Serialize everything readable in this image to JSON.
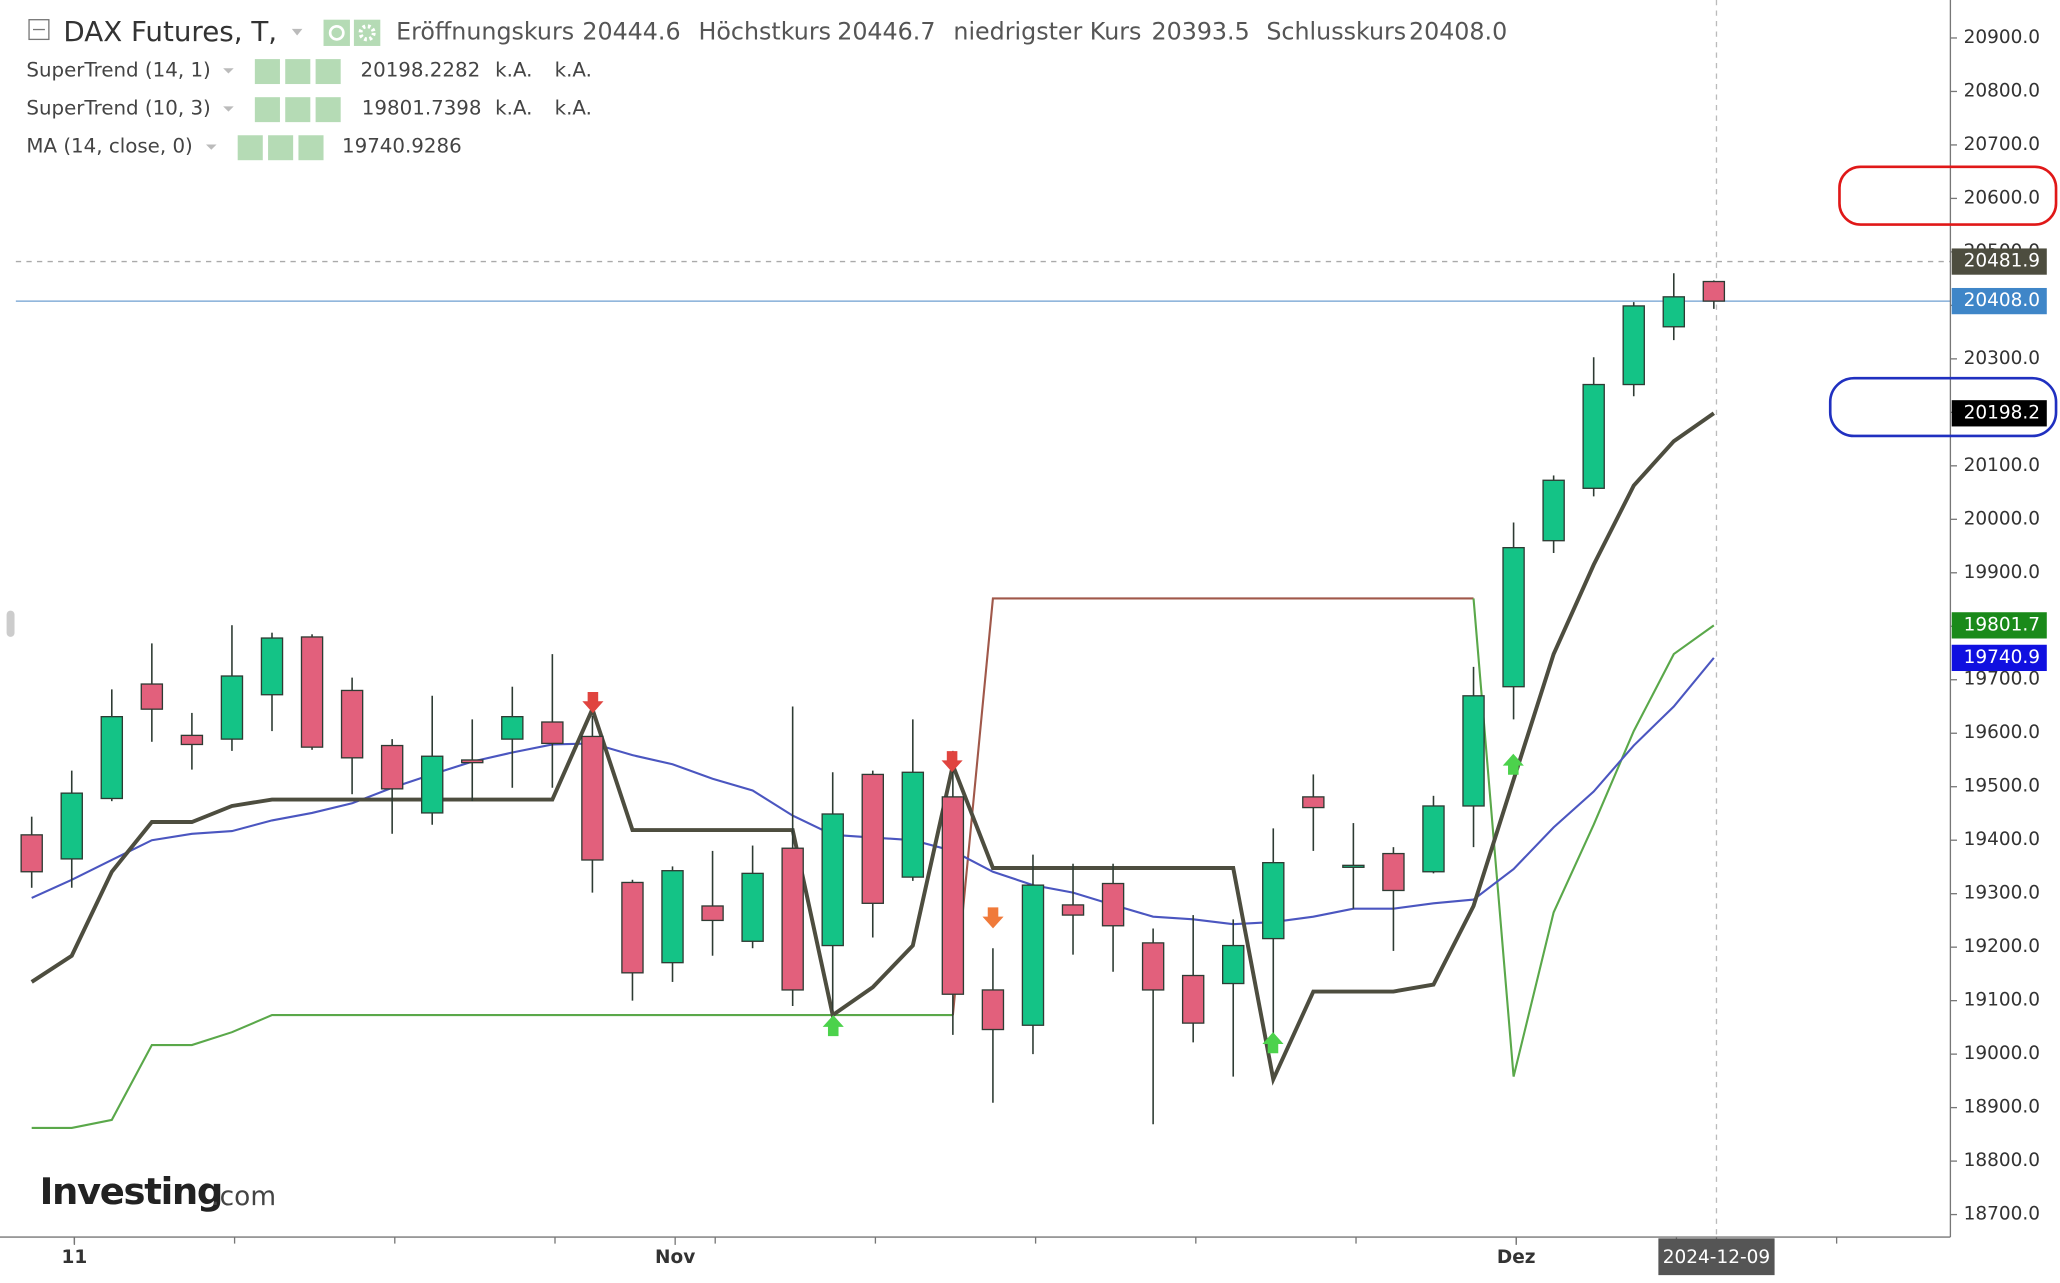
{
  "chart_data": {
    "type": "candlestick",
    "title": "DAX Futures, T,",
    "legend_values": [
      {
        "name": "Eröffnungskurs",
        "label": "20444.6"
      },
      {
        "name": "Höchstkurs",
        "label": "20446.7"
      },
      {
        "name": "niedrigster Kurs",
        "label": "20393.5"
      },
      {
        "name": "Schlusskurs",
        "label": "20408.0"
      }
    ],
    "categories": [
      null,
      "11",
      null,
      null,
      null,
      null,
      null,
      null,
      null,
      null,
      null,
      null,
      null,
      null,
      null,
      null,
      "Nov",
      null,
      null,
      null,
      null,
      null,
      null,
      null,
      null,
      null,
      null,
      null,
      null,
      null,
      null,
      null,
      null,
      null,
      null,
      null,
      null,
      "Dez",
      null,
      null,
      null,
      null,
      "2024-12-09"
    ],
    "open": [
      19410,
      19365,
      19478,
      19692,
      19596,
      19589,
      19672,
      19780,
      19680,
      19577,
      19451,
      19550,
      19589,
      19621,
      19594,
      19321,
      19171,
      19277,
      19211,
      19385,
      19203,
      19523,
      19331,
      19481,
      19120,
      19054,
      19279,
      19319,
      19208,
      19147,
      19132,
      19216,
      19481,
      19353,
      19375,
      19341,
      19464,
      19687,
      19960,
      20058,
      20252,
      20360,
      20444.6
    ],
    "high": [
      19444,
      19530,
      19682,
      19768,
      19638,
      19802,
      19788,
      19785,
      19704,
      19589,
      19670,
      19626,
      19687,
      19748,
      19633,
      19326,
      19351,
      19380,
      19390,
      19650,
      19527,
      19530,
      19626,
      19567,
      19198,
      19373,
      19356,
      19356,
      19235,
      19260,
      19252,
      19422,
      19523,
      19432,
      19387,
      19483,
      19724,
      19994,
      20082,
      20303,
      20406,
      20460,
      20446.7
    ],
    "low": [
      19311,
      19311,
      19473,
      19584,
      19532,
      19567,
      19604,
      19569,
      19486,
      19412,
      19429,
      19473,
      19498,
      19498,
      19302,
      19100,
      19135,
      19184,
      19198,
      19090,
      19081,
      19218,
      19324,
      19036,
      18909,
      19000,
      19186,
      19154,
      18869,
      19022,
      18958,
      19007,
      19380,
      19272,
      19193,
      19338,
      19387,
      19626,
      19937,
      20043,
      20230,
      20335,
      20393.5
    ],
    "close": [
      19341,
      19488,
      19631,
      19645,
      19579,
      19707,
      19778,
      19574,
      19554,
      19496,
      19557,
      19545,
      19631,
      19581,
      19363,
      19152,
      19343,
      19250,
      19338,
      19120,
      19449,
      19282,
      19527,
      19112,
      19046,
      19316,
      19260,
      19240,
      19120,
      19058,
      19203,
      19358,
      19461,
      19353,
      19306,
      19464,
      19670,
      19947,
      20073,
      20252,
      20399,
      20416,
      20408.0
    ],
    "up_color": "#14c386",
    "down_color": "#e2607c",
    "series": [
      {
        "name": "SuperTrend (14, 1)",
        "color": "#4d4d3f",
        "extra_labels": [
          "k.A.",
          "k.A."
        ],
        "values": [
          19135,
          19184,
          19341,
          19434,
          19434,
          19464,
          19476,
          19476,
          19476,
          19476,
          19476,
          19476,
          19476,
          19476,
          19645,
          19419,
          19419,
          19419,
          19419,
          19419,
          19073,
          19125,
          19203,
          19540,
          19348,
          19348,
          19348,
          19348,
          19348,
          19348,
          19348,
          18953,
          19117,
          19117,
          19117,
          19130,
          19277,
          19513,
          19748,
          19915,
          20063,
          20146,
          20198.2282
        ]
      },
      {
        "name": "SuperTrend (10, 3)",
        "color": "#1a8a1a",
        "extra_labels": [
          "k.A.",
          "k.A."
        ],
        "values": [
          18862,
          18862,
          18877,
          19017,
          19017,
          19041,
          19073,
          19073,
          19073,
          19073,
          19073,
          19073,
          19073,
          19073,
          19073,
          19073,
          19073,
          19073,
          19073,
          19073,
          19073,
          19073,
          19073,
          19073,
          19852,
          19852,
          19852,
          19852,
          19852,
          19852,
          19852,
          19852,
          19852,
          19852,
          19852,
          19852,
          19852,
          18958,
          19265,
          19429,
          19604,
          19748,
          19801.7398
        ],
        "segment_colors": [
          "#5aa84a",
          "#5aa84a",
          "#5aa84a",
          "#5aa84a",
          "#5aa84a",
          "#5aa84a",
          "#5aa84a",
          "#5aa84a",
          "#5aa84a",
          "#5aa84a",
          "#5aa84a",
          "#5aa84a",
          "#5aa84a",
          "#5aa84a",
          "#5aa84a",
          "#5aa84a",
          "#5aa84a",
          "#5aa84a",
          "#5aa84a",
          "#5aa84a",
          "#5aa84a",
          "#5aa84a",
          "#5aa84a",
          "#5aa84a",
          "#a0584a",
          "#a0584a",
          "#a0584a",
          "#a0584a",
          "#a0584a",
          "#a0584a",
          "#a0584a",
          "#a0584a",
          "#a0584a",
          "#a0584a",
          "#a0584a",
          "#a0584a",
          "#a0584a",
          "#5aa84a",
          "#5aa84a",
          "#5aa84a",
          "#5aa84a",
          "#5aa84a",
          "#5aa84a"
        ]
      },
      {
        "name": "MA (14, close, 0)",
        "color": "#2a2ad8",
        "line_color": "#4b56c0",
        "values": [
          19292,
          19326,
          19363,
          19400,
          19412,
          19417,
          19437,
          19451,
          19469,
          19498,
          19523,
          19547,
          19564,
          19579,
          19581,
          19559,
          19542,
          19515,
          19493,
          19446,
          19410,
          19405,
          19400,
          19380,
          19341,
          19316,
          19302,
          19279,
          19257,
          19252,
          19243,
          19247,
          19257,
          19272,
          19272,
          19282,
          19289,
          19346,
          19424,
          19491,
          19577,
          19650,
          19740.9286
        ]
      }
    ],
    "price_tags": [
      {
        "value": 20481.9,
        "label": "20481.9",
        "color": "#4d4d3f",
        "line": "dashed"
      },
      {
        "value": 20408,
        "label": "20408.0",
        "color": "#3f86c8",
        "line": "solid"
      },
      {
        "value": 20198.2,
        "label": "20198.2",
        "color": "#000000"
      },
      {
        "value": 19801.7,
        "label": "19801.7",
        "color": "#1a8a1a"
      },
      {
        "value": 19740.9,
        "label": "19740.9",
        "color": "#1010e0"
      }
    ],
    "ylim": [
      18658,
      20971
    ],
    "yticks": [
      {
        "value": 18700,
        "label": "18700.0"
      },
      {
        "value": 18800,
        "label": "18800.0"
      },
      {
        "value": 18900,
        "label": "18900.0"
      },
      {
        "value": 19000,
        "label": "19000.0"
      },
      {
        "value": 19100,
        "label": "19100.0"
      },
      {
        "value": 19200,
        "label": "19200.0"
      },
      {
        "value": 19300,
        "label": "19300.0"
      },
      {
        "value": 19400,
        "label": "19400.0"
      },
      {
        "value": 19500,
        "label": "19500.0"
      },
      {
        "value": 19600,
        "label": "19600.0"
      },
      {
        "value": 19700,
        "label": "19700.0"
      },
      {
        "value": 19800,
        "label": "19800.0"
      },
      {
        "value": 19900,
        "label": "19900.0"
      },
      {
        "value": 20000,
        "label": "20000.0"
      },
      {
        "value": 20100,
        "label": "20100.0"
      },
      {
        "value": 20200,
        "label": "20200.0"
      },
      {
        "value": 20300,
        "label": "20300.0"
      },
      {
        "value": 20400,
        "label": "20400.0"
      },
      {
        "value": 20500,
        "label": "20500.0"
      },
      {
        "value": 20600,
        "label": "20600.0"
      },
      {
        "value": 20700,
        "label": "20700.0"
      },
      {
        "value": 20800,
        "label": "20800.0"
      },
      {
        "value": 20900,
        "label": "20900.0"
      }
    ],
    "grid": false,
    "watermark": "Investing",
    "watermark_suffix": ".com"
  }
}
